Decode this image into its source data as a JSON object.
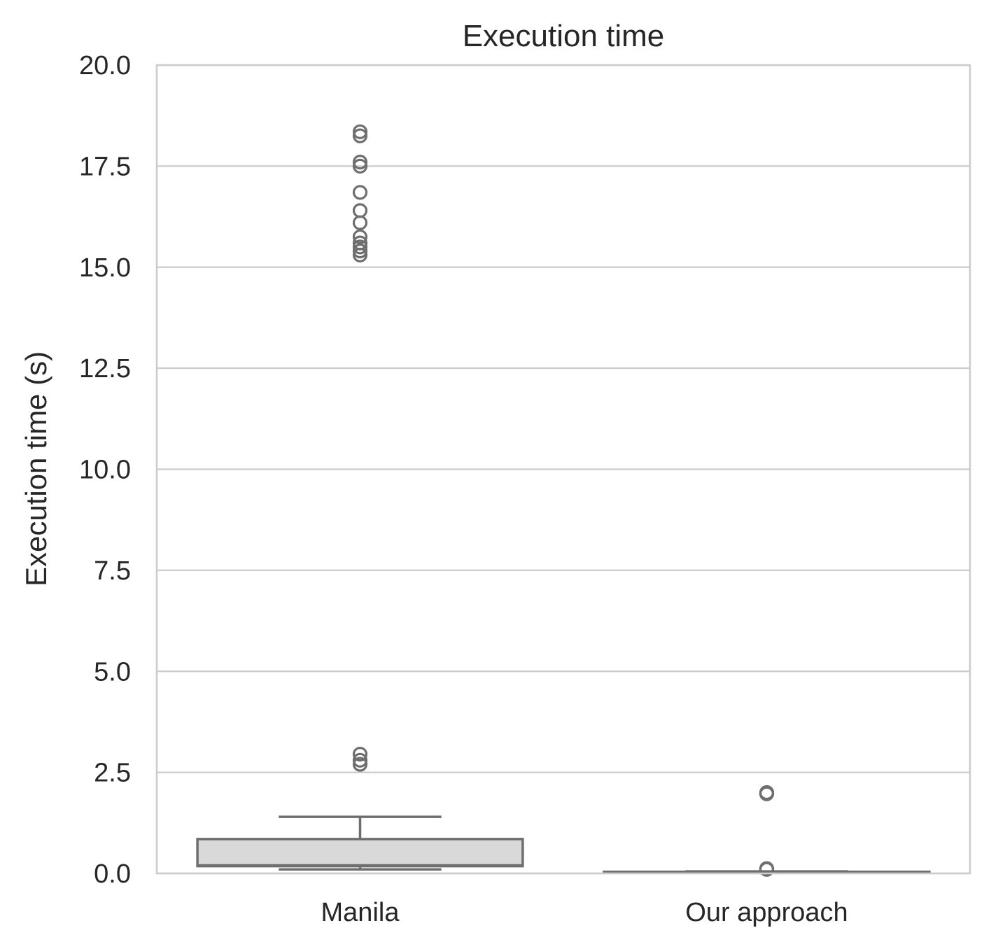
{
  "chart_data": {
    "type": "box",
    "title": "Execution time",
    "xlabel": "",
    "ylabel": "Execution time (s)",
    "ylim": [
      0,
      20
    ],
    "yticks": [
      "0.0",
      "2.5",
      "5.0",
      "7.5",
      "10.0",
      "12.5",
      "15.0",
      "17.5",
      "20.0"
    ],
    "grid": "horizontal",
    "categories": [
      "Manila",
      "Our approach"
    ],
    "boxes": [
      {
        "name": "Manila",
        "whisker_low": 0.1,
        "q1": 0.18,
        "median": 0.2,
        "q3": 0.85,
        "whisker_high": 1.4,
        "fliers": [
          2.7,
          2.8,
          2.95,
          15.3,
          15.4,
          15.5,
          15.6,
          15.75,
          16.1,
          16.4,
          16.85,
          17.5,
          17.6,
          18.25,
          18.35
        ]
      },
      {
        "name": "Our approach",
        "whisker_low": 0.03,
        "q1": 0.03,
        "median": 0.03,
        "q3": 0.04,
        "whisker_high": 0.05,
        "fliers": [
          0.1,
          0.12,
          1.97,
          2.0
        ]
      }
    ],
    "colors": {
      "box_fill": "#d9d9d9",
      "box_edge": "#6e6e6e",
      "grid": "#cccccc"
    }
  }
}
